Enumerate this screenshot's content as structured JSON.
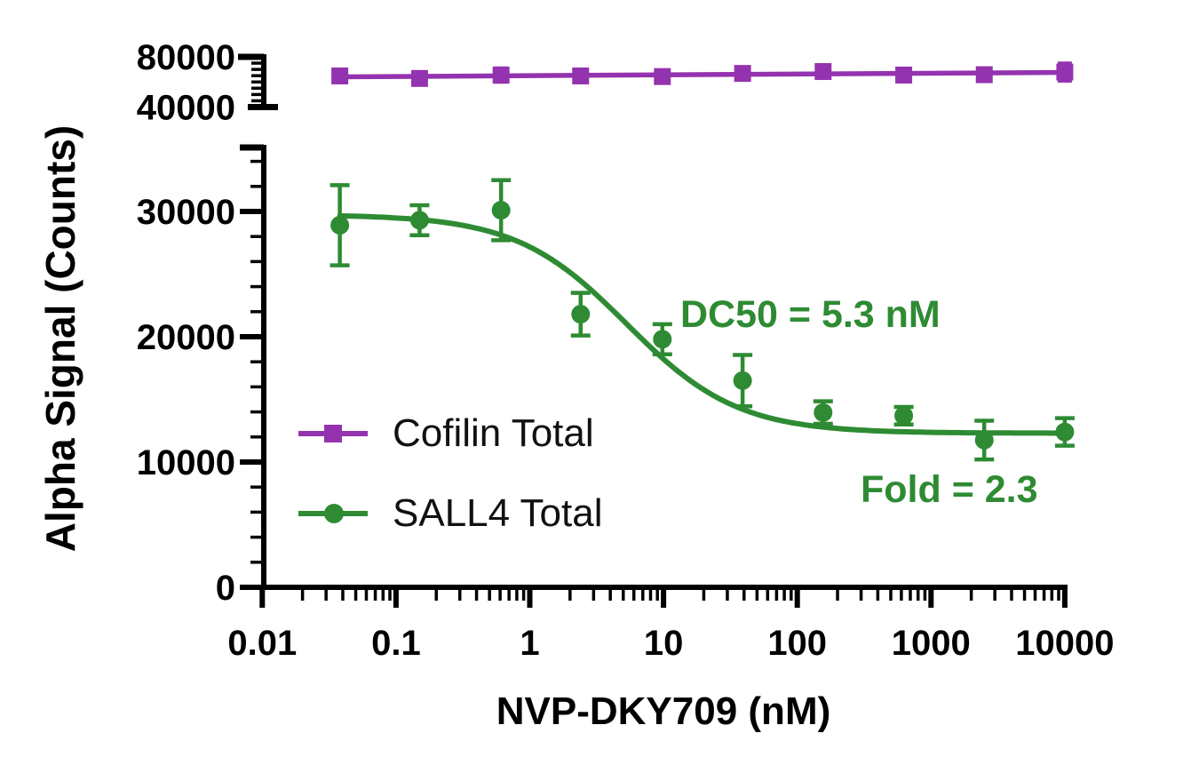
{
  "colors": {
    "cofilin": "#9433af",
    "sall4": "#2e8b33",
    "axis": "#000000",
    "background": "#ffffff",
    "legend_text": "#111111"
  },
  "chart_data": {
    "type": "scatter",
    "title": "",
    "x_axis": {
      "label": "NVP-DKY709 (nM)",
      "scale": "log10",
      "range": [
        0.01,
        10000
      ],
      "tick_values": [
        0.01,
        0.1,
        1,
        10,
        100,
        1000,
        10000
      ],
      "tick_labels": [
        "0.01",
        "0.1",
        "1",
        "10",
        "100",
        "1000",
        "10000"
      ],
      "minor_ticks": "log-decades 2-9"
    },
    "y_axis": {
      "label": "Alpha Signal (Counts)",
      "broken": true,
      "lower_segment": {
        "range": [
          0,
          35000
        ],
        "major_ticks": [
          0,
          10000,
          20000,
          30000
        ],
        "tick_labels": [
          "0",
          "10000",
          "20000",
          "30000"
        ],
        "minor_step": 2000
      },
      "upper_segment": {
        "range": [
          40000,
          80000
        ],
        "major_ticks": [
          40000,
          80000
        ],
        "tick_labels": [
          "40000",
          "80000"
        ],
        "minor_step": 5000
      }
    },
    "series": [
      {
        "name": "Cofilin Total",
        "marker": "square",
        "color": "#9433af",
        "axis_segment": "upper",
        "x": [
          0.038,
          0.15,
          0.61,
          2.4,
          9.8,
          39,
          156,
          625,
          2500,
          10000
        ],
        "y": [
          64800,
          62800,
          65500,
          64800,
          64300,
          66800,
          68300,
          65500,
          65800,
          67900
        ],
        "y_err": [
          1200,
          1500,
          5500,
          5000,
          1200,
          1500,
          1200,
          1000,
          1200,
          7000
        ],
        "fit": {
          "model": "flat-line",
          "y_at_min_x": 64100,
          "y_at_max_x": 67600
        }
      },
      {
        "name": "SALL4 Total",
        "marker": "circle",
        "color": "#2e8b33",
        "axis_segment": "lower",
        "x": [
          0.038,
          0.15,
          0.61,
          2.4,
          9.8,
          39,
          156,
          625,
          2500,
          10000
        ],
        "y": [
          28900,
          29300,
          30100,
          21800,
          19800,
          16500,
          13950,
          13700,
          11750,
          12400
        ],
        "y_err": [
          3200,
          1200,
          2400,
          1700,
          1200,
          2050,
          900,
          700,
          1550,
          1100
        ],
        "fit": {
          "model": "4PL",
          "top": 29750,
          "bottom": 12300,
          "dc50_nM": 5.3,
          "hill": 1.05
        }
      }
    ],
    "annotations": [
      {
        "id": "dc50",
        "text": "DC50 = 5.3 nM",
        "color": "#2e8b33"
      },
      {
        "id": "fold",
        "text": "Fold = 2.3",
        "color": "#2e8b33"
      }
    ],
    "legend": {
      "position": "inside-lower-left"
    }
  }
}
